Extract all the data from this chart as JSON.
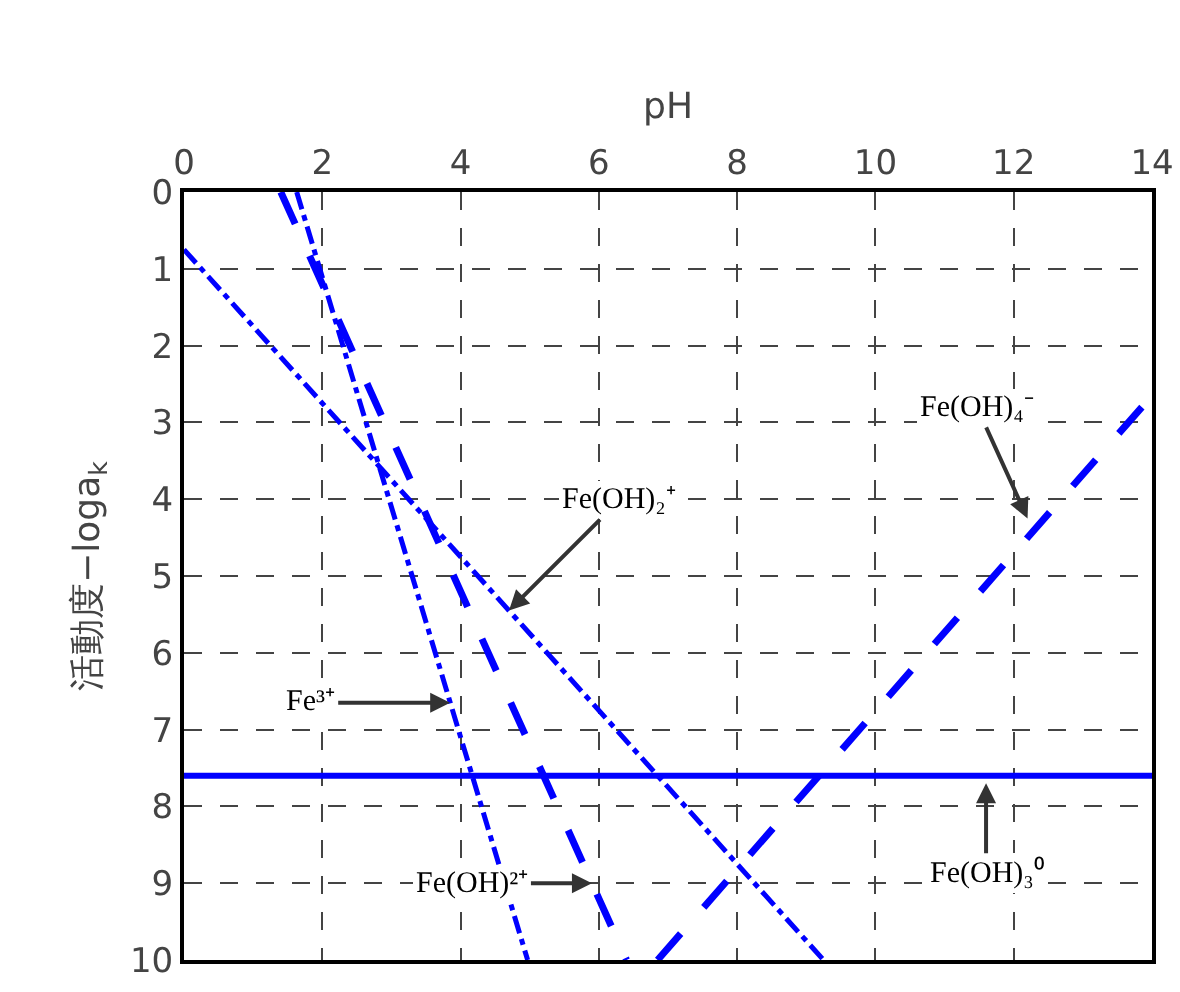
{
  "chart_data": {
    "type": "line",
    "xlabel": "pH",
    "ylabel": "活動度−loga$_{k}$",
    "xlim": [
      0,
      14
    ],
    "xticks": [
      0,
      2,
      4,
      6,
      8,
      10,
      12,
      14
    ],
    "ylim": [
      10,
      0
    ],
    "yticks": [
      0,
      1,
      2,
      3,
      4,
      5,
      6,
      7,
      8,
      9,
      10
    ],
    "grid": true,
    "marker": "none",
    "series": [
      {
        "color": "#0000ff",
        "line_style": "dotted",
        "x": [
          1.63,
          4.97
        ],
        "values": [
          0,
          10
        ]
      },
      {
        "color": "#0000ff",
        "line_style": "dashed",
        "x": [
          1.4,
          6.4
        ],
        "values": [
          0,
          10
        ]
      },
      {
        "color": "#0000ff",
        "line_style": "dotted",
        "x": [
          0,
          9.25
        ],
        "values": [
          0.75,
          10
        ]
      },
      {
        "color": "#0000ff",
        "line_style": "solid",
        "x": [
          0,
          14
        ],
        "values": [
          7.6,
          7.6
        ]
      },
      {
        "color": "#0000ff",
        "line_style": "dashed",
        "x": [
          6.85,
          14
        ],
        "values": [
          10,
          2.65
        ]
      }
    ],
    "annotations": [
      {
        "text": "Fe³⁺",
        "x": 3.85,
        "y": 6.65
      },
      {
        "text": "Fe(OH)²⁺",
        "x": 5.9,
        "y": 9.0
      },
      {
        "text": "Fe(OH)₂⁺",
        "x": 4.7,
        "y": 5.45
      },
      {
        "text": "Fe(OH)₃⁰",
        "x": 11.6,
        "y": 7.7
      },
      {
        "text": "Fe(OH)₄⁻",
        "x": 12.2,
        "y": 4.25
      }
    ]
  }
}
